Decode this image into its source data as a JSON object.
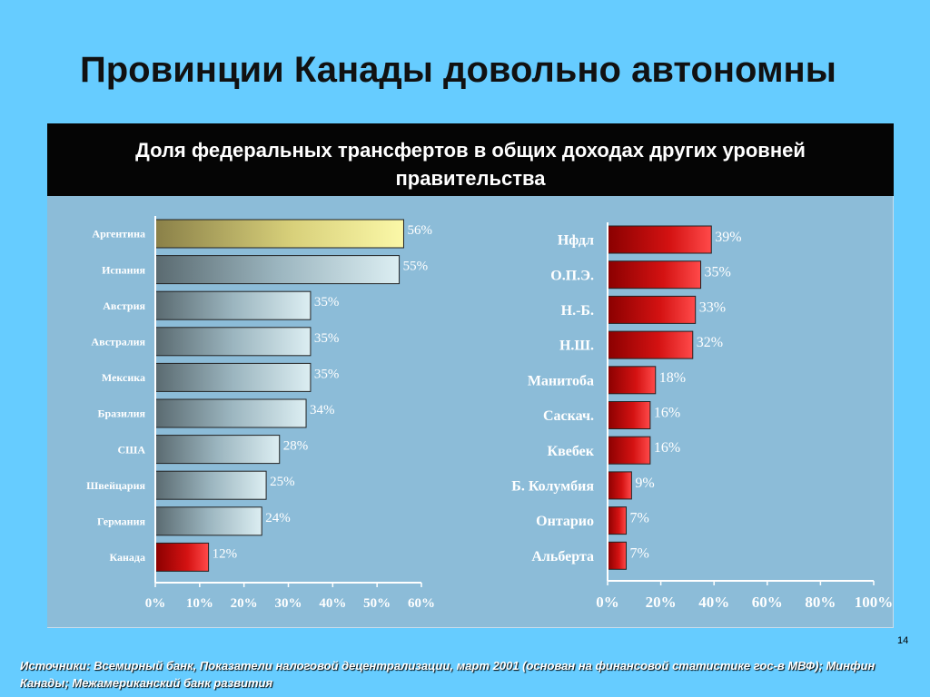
{
  "slide": {
    "title": "Провинции Канады довольно автономны",
    "page_number": "14",
    "sources": "Источники: Всемирный банк, Показатели налоговой децентрализации, март 2001 (основан на финансовой статистике гос-в МВФ); Минфин Канады; Межамериканский банк развития"
  },
  "chart_header": {
    "line1": "Доля федеральных трансфертов в общих доходах других уровней",
    "line2": "правительства"
  },
  "colors": {
    "highlight_bar": "#e6de7a",
    "country_bar": "#a9c5cf",
    "canada_bar": "#d81010",
    "province_bar": "#d81010",
    "panel_bg": "#8cbcd8"
  },
  "chart_data": [
    {
      "type": "bar",
      "orientation": "horizontal",
      "categories": [
        "Аргентина",
        "Испания",
        "Австрия",
        "Австралия",
        "Мексика",
        "Бразилия",
        "США",
        "Швейцария",
        "Германия",
        "Канада"
      ],
      "values": [
        56,
        55,
        35,
        35,
        35,
        34,
        28,
        25,
        24,
        12
      ],
      "labels": [
        "56%",
        "55%",
        "35%",
        "35%",
        "35%",
        "34%",
        "28%",
        "25%",
        "24%",
        "12%"
      ],
      "xlim": [
        0,
        60
      ],
      "xticks": [
        "0%",
        "10%",
        "20%",
        "30%",
        "40%",
        "50%",
        "60%"
      ],
      "grid": false
    },
    {
      "type": "bar",
      "orientation": "horizontal",
      "categories": [
        "Нфдл",
        "О.П.Э.",
        "Н.-Б.",
        "Н.Ш.",
        "Манитоба",
        "Саскач.",
        "Квебек",
        "Б. Колумбия",
        "Онтарио",
        "Альберта"
      ],
      "values": [
        39,
        35,
        33,
        32,
        18,
        16,
        16,
        9,
        7,
        7
      ],
      "labels": [
        "39%",
        "35%",
        "33%",
        "32%",
        "18%",
        "16%",
        "16%",
        "9%",
        "7%",
        "7%"
      ],
      "xlim": [
        0,
        100
      ],
      "xticks": [
        "0%",
        "20%",
        "40%",
        "60%",
        "80%",
        "100%"
      ],
      "grid": false
    }
  ]
}
